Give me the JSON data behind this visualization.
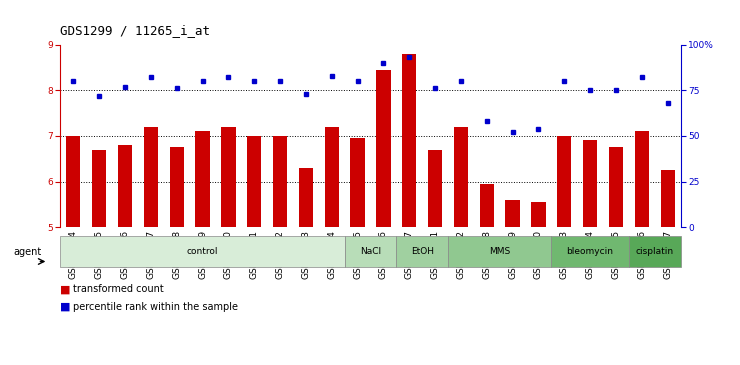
{
  "title": "GDS1299 / 11265_i_at",
  "categories": [
    "GSM40714",
    "GSM40715",
    "GSM40716",
    "GSM40717",
    "GSM40718",
    "GSM40719",
    "GSM40720",
    "GSM40721",
    "GSM40722",
    "GSM40723",
    "GSM40724",
    "GSM40725",
    "GSM40726",
    "GSM40727",
    "GSM40731",
    "GSM40732",
    "GSM40728",
    "GSM40729",
    "GSM40730",
    "GSM40733",
    "GSM40734",
    "GSM40735",
    "GSM40736",
    "GSM40737"
  ],
  "bar_values": [
    7.0,
    6.7,
    6.8,
    7.2,
    6.75,
    7.1,
    7.2,
    7.0,
    7.0,
    6.3,
    7.2,
    6.95,
    8.45,
    8.8,
    6.7,
    7.2,
    5.95,
    5.6,
    5.55,
    7.0,
    6.9,
    6.75,
    7.1,
    6.25
  ],
  "dot_values": [
    80,
    72,
    77,
    82,
    76,
    80,
    82,
    80,
    80,
    73,
    83,
    80,
    90,
    93,
    76,
    80,
    58,
    52,
    54,
    80,
    75,
    75,
    82,
    68
  ],
  "bar_color": "#cc0000",
  "dot_color": "#0000cc",
  "ylim_left": [
    5,
    9
  ],
  "ylim_right": [
    0,
    100
  ],
  "yticks_left": [
    5,
    6,
    7,
    8,
    9
  ],
  "yticks_right": [
    0,
    25,
    50,
    75,
    100
  ],
  "ytick_labels_right": [
    "0",
    "25",
    "50",
    "75",
    "100%"
  ],
  "groups": [
    {
      "label": "control",
      "start": 0,
      "end": 11,
      "color": "#d8edd8"
    },
    {
      "label": "NaCl",
      "start": 11,
      "end": 13,
      "color": "#b8ddb8"
    },
    {
      "label": "EtOH",
      "start": 13,
      "end": 15,
      "color": "#a0d0a0"
    },
    {
      "label": "MMS",
      "start": 15,
      "end": 19,
      "color": "#90c890"
    },
    {
      "label": "bleomycin",
      "start": 19,
      "end": 22,
      "color": "#70b870"
    },
    {
      "label": "cisplatin",
      "start": 22,
      "end": 24,
      "color": "#58a858"
    }
  ],
  "legend_bar_label": "transformed count",
  "legend_dot_label": "percentile rank within the sample",
  "agent_label": "agent",
  "background_color": "#ffffff",
  "title_fontsize": 9,
  "tick_fontsize": 6.5,
  "bar_width": 0.55
}
